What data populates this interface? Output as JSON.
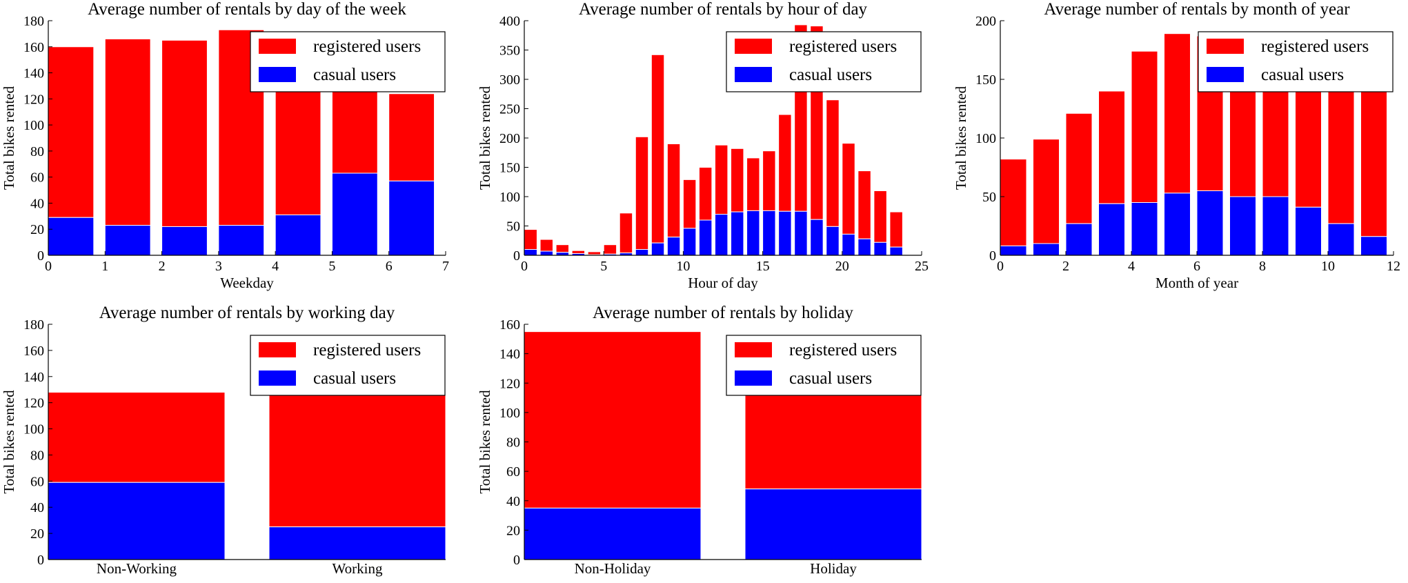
{
  "colors": {
    "registered": "#ff0000",
    "casual": "#0000ff"
  },
  "chart_data": [
    {
      "type": "bar",
      "stacked": true,
      "title": "Average number of rentals by day of the week",
      "xlabel": "Weekday",
      "ylabel": "Total bikes rented",
      "xlim": [
        0,
        7
      ],
      "ylim": [
        0,
        180
      ],
      "xticks": [
        "0",
        "1",
        "2",
        "3",
        "4",
        "5",
        "6",
        "7"
      ],
      "yticks": [
        "0",
        "20",
        "40",
        "60",
        "80",
        "100",
        "120",
        "140",
        "160",
        "180"
      ],
      "legend": {
        "position": "top-right",
        "entries": [
          "registered users",
          "casual users"
        ]
      },
      "x": [
        0,
        1,
        2,
        3,
        4,
        5,
        6
      ],
      "bar_width": 0.8,
      "series": [
        {
          "name": "casual users",
          "values": [
            29,
            23,
            22,
            23,
            31,
            63,
            57
          ]
        },
        {
          "name": "registered users",
          "values": [
            131,
            143,
            143,
            150,
            98,
            65,
            67
          ]
        }
      ]
    },
    {
      "type": "bar",
      "stacked": true,
      "title": "Average number of rentals by hour of day",
      "xlabel": "Hour of day",
      "ylabel": "Total bikes rented",
      "xlim": [
        0,
        25
      ],
      "ylim": [
        0,
        400
      ],
      "xticks": [
        "0",
        "5",
        "10",
        "15",
        "20",
        "25"
      ],
      "yticks": [
        "0",
        "50",
        "100",
        "150",
        "200",
        "250",
        "300",
        "350",
        "400"
      ],
      "legend": {
        "position": "top-right",
        "entries": [
          "registered users",
          "casual users"
        ]
      },
      "x": [
        0,
        1,
        2,
        3,
        4,
        5,
        6,
        7,
        8,
        9,
        10,
        11,
        12,
        13,
        14,
        15,
        16,
        17,
        18,
        19,
        20,
        21,
        22,
        23
      ],
      "bar_width": 0.8,
      "series": [
        {
          "name": "casual users",
          "values": [
            10,
            7,
            5,
            3,
            1,
            2,
            4,
            10,
            21,
            31,
            46,
            60,
            70,
            74,
            76,
            76,
            75,
            75,
            61,
            49,
            36,
            28,
            22,
            14
          ]
        },
        {
          "name": "registered users",
          "values": [
            34,
            20,
            13,
            5,
            5,
            16,
            68,
            192,
            321,
            159,
            83,
            90,
            118,
            108,
            90,
            102,
            165,
            318,
            330,
            216,
            155,
            116,
            88,
            60
          ]
        }
      ]
    },
    {
      "type": "bar",
      "stacked": true,
      "title": "Average number of rentals by month of year",
      "xlabel": "Month of year",
      "ylabel": "Total bikes rented",
      "xlim": [
        0,
        12
      ],
      "ylim": [
        0,
        200
      ],
      "xticks": [
        "0",
        "2",
        "4",
        "6",
        "8",
        "10",
        "12"
      ],
      "yticks": [
        "0",
        "50",
        "100",
        "150",
        "200"
      ],
      "legend": {
        "position": "top-right",
        "entries": [
          "registered users",
          "casual users"
        ]
      },
      "x": [
        0,
        1,
        2,
        3,
        4,
        5,
        6,
        7,
        8,
        9,
        10,
        11
      ],
      "bar_width": 0.8,
      "series": [
        {
          "name": "casual users",
          "values": [
            8,
            10,
            27,
            44,
            45,
            53,
            55,
            50,
            50,
            41,
            27,
            16
          ]
        },
        {
          "name": "registered users",
          "values": [
            74,
            89,
            94,
            96,
            129,
            136,
            132,
            135,
            133,
            125,
            138,
            143
          ]
        }
      ]
    },
    {
      "type": "bar",
      "stacked": true,
      "title": "Average number of rentals by working day",
      "xlabel": "",
      "ylabel": "Total bikes rented",
      "xlim": [
        0,
        1.8
      ],
      "ylim": [
        0,
        180
      ],
      "categories": [
        "Non-Working",
        "Working"
      ],
      "yticks": [
        "0",
        "20",
        "40",
        "60",
        "80",
        "100",
        "120",
        "140",
        "160",
        "180"
      ],
      "legend": {
        "position": "top-right",
        "entries": [
          "registered users",
          "casual users"
        ]
      },
      "x": [
        0,
        1
      ],
      "bar_width": 0.8,
      "series": [
        {
          "name": "casual users",
          "values": [
            59,
            25
          ]
        },
        {
          "name": "registered users",
          "values": [
            69,
            142
          ]
        }
      ]
    },
    {
      "type": "bar",
      "stacked": true,
      "title": "Average number of rentals by holiday",
      "xlabel": "",
      "ylabel": "Total bikes rented",
      "xlim": [
        0,
        1.8
      ],
      "ylim": [
        0,
        160
      ],
      "categories": [
        "Non-Holiday",
        "Holiday"
      ],
      "yticks": [
        "0",
        "20",
        "40",
        "60",
        "80",
        "100",
        "120",
        "140",
        "160"
      ],
      "legend": {
        "position": "top-right",
        "entries": [
          "registered users",
          "casual users"
        ]
      },
      "x": [
        0,
        1
      ],
      "bar_width": 0.8,
      "series": [
        {
          "name": "casual users",
          "values": [
            35,
            48
          ]
        },
        {
          "name": "registered users",
          "values": [
            120,
            89
          ]
        }
      ]
    }
  ]
}
